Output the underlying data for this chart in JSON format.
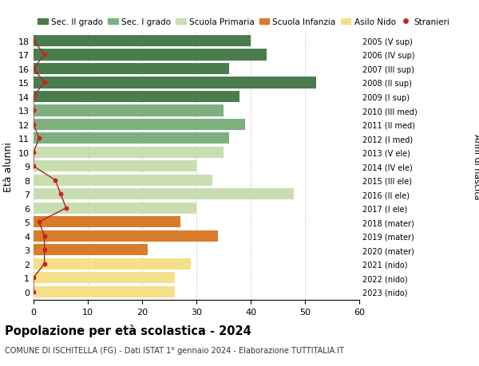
{
  "ages": [
    18,
    17,
    16,
    15,
    14,
    13,
    12,
    11,
    10,
    9,
    8,
    7,
    6,
    5,
    4,
    3,
    2,
    1,
    0
  ],
  "bar_values": [
    40,
    43,
    36,
    52,
    38,
    35,
    39,
    36,
    35,
    30,
    33,
    48,
    30,
    27,
    34,
    21,
    29,
    26,
    26
  ],
  "bar_colors": [
    "#4a7c4e",
    "#4a7c4e",
    "#4a7c4e",
    "#4a7c4e",
    "#4a7c4e",
    "#7db07d",
    "#7db07d",
    "#7db07d",
    "#c8deb0",
    "#c8deb0",
    "#c8deb0",
    "#c8deb0",
    "#c8deb0",
    "#d97c2a",
    "#d97c2a",
    "#d97c2a",
    "#f5e08a",
    "#f5e08a",
    "#f5e08a"
  ],
  "stranieri_values": [
    0,
    2,
    0,
    2,
    0,
    0,
    0,
    1,
    0,
    0,
    4,
    5,
    6,
    1,
    2,
    2,
    2,
    0,
    0
  ],
  "right_labels": [
    "2005 (V sup)",
    "2006 (IV sup)",
    "2007 (III sup)",
    "2008 (II sup)",
    "2009 (I sup)",
    "2010 (III med)",
    "2011 (II med)",
    "2012 (I med)",
    "2013 (V ele)",
    "2014 (IV ele)",
    "2015 (III ele)",
    "2016 (II ele)",
    "2017 (I ele)",
    "2018 (mater)",
    "2019 (mater)",
    "2020 (mater)",
    "2021 (nido)",
    "2022 (nido)",
    "2023 (nido)"
  ],
  "legend_labels": [
    "Sec. II grado",
    "Sec. I grado",
    "Scuola Primaria",
    "Scuola Infanzia",
    "Asilo Nido",
    "Stranieri"
  ],
  "legend_colors": [
    "#4a7c4e",
    "#7db07d",
    "#c8deb0",
    "#d97c2a",
    "#f5e08a",
    "#cc2222"
  ],
  "title_bold": "Popolazione per età scolastica - 2024",
  "subtitle": "COMUNE DI ISCHITELLA (FG) - Dati ISTAT 1° gennaio 2024 - Elaborazione TUTTITALIA.IT",
  "ylabel_left": "Età alunni",
  "ylabel_right": "Anni di nascita",
  "xlim": [
    0,
    60
  ],
  "xticks": [
    0,
    10,
    20,
    30,
    40,
    50,
    60
  ],
  "background_color": "#ffffff",
  "bar_height": 0.82,
  "stranieri_color": "#cc2222",
  "line_color": "#aa2222"
}
